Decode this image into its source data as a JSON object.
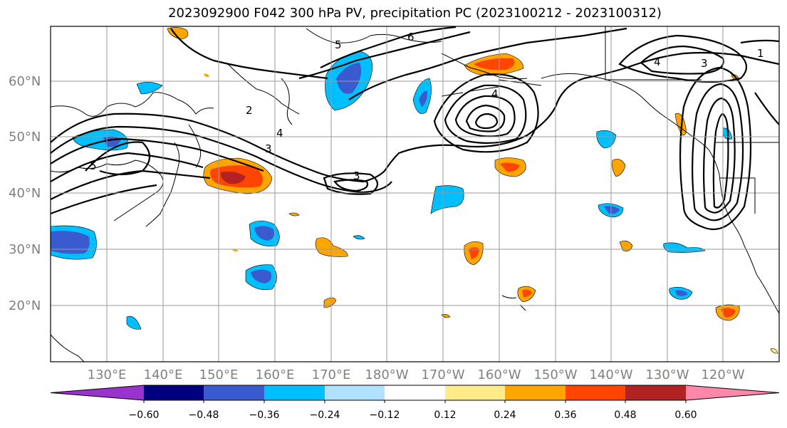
{
  "title": "2023092900 F042 300 hPa PV, precipitation PC (2023100212 - 2023100312)",
  "lat_labels": [
    "60°N",
    "50°N",
    "40°N",
    "30°N",
    "20°N"
  ],
  "lon_labels": [
    "130°E",
    "140°E",
    "150°E",
    "160°E",
    "170°E",
    "180°W",
    "170°W",
    "160°W",
    "150°W",
    "140°W",
    "130°W",
    "120°W"
  ],
  "colorbar": {
    "ticks": [
      "−0.60",
      "−0.48",
      "−0.36",
      "−0.24",
      "−0.12",
      "0.12",
      "0.24",
      "0.36",
      "0.48",
      "0.60"
    ],
    "colors": [
      "#9933cc",
      "#000080",
      "#3a5bcf",
      "#00bfff",
      "#b0e2ff",
      "#ffffff",
      "#ffeb8a",
      "#ffa500",
      "#ff4500",
      "#b22222",
      "#ff88aa"
    ]
  },
  "contour_labels": [
    "1",
    "2",
    "3",
    "4",
    "5",
    "6"
  ]
}
